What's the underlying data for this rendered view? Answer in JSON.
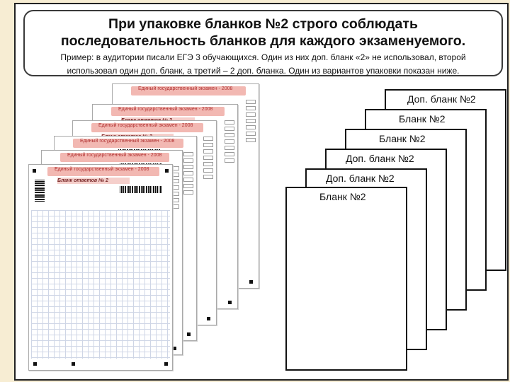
{
  "header": {
    "title_line1": "При упаковке бланков №2 строго соблюдать",
    "title_line2": "последовательность бланков для каждого экзаменуемого.",
    "example_line1": "Пример:  в аудитории писали ЕГЭ 3 обучающихся. Один из них доп. бланк «2» не использовал, второй",
    "example_line2": "использовал один доп. бланк, а третий – 2 доп. бланка.  Один из вариантов упаковки показан ниже."
  },
  "right_stack": {
    "sheets": [
      {
        "label": "Доп. бланк №2"
      },
      {
        "label": "Бланк №2"
      },
      {
        "label": "Бланк №2"
      },
      {
        "label": "Доп. бланк №2"
      },
      {
        "label": "Доп. бланк №2"
      },
      {
        "label": "Бланк №2"
      }
    ]
  },
  "forms": {
    "exam_title": "Единый государственный экзамен - 2008",
    "form_name": "Бланк ответов № 2"
  },
  "colors": {
    "background": "#f7edd3",
    "form_band": "#f2b8b2",
    "frame": "#222222"
  }
}
